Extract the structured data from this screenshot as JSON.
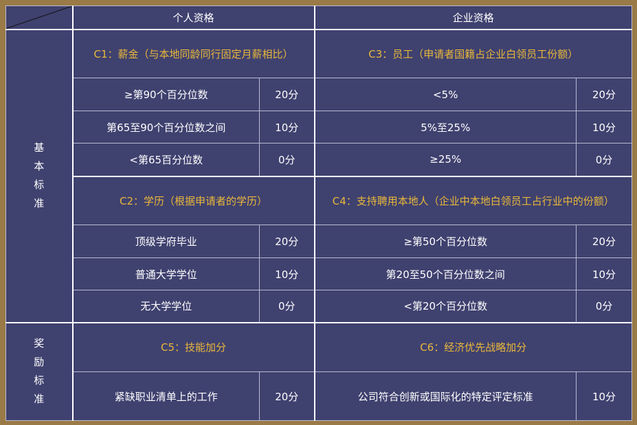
{
  "header": {
    "personal": "个人资格",
    "enterprise": "企业资格"
  },
  "sections": [
    {
      "label": "基\n本\n标\n准",
      "label_chars": [
        "基",
        "本",
        "标",
        "准"
      ]
    },
    {
      "label": "奖\n励\n标\n准",
      "label_chars": [
        "奖",
        "励",
        "标",
        "准"
      ]
    }
  ],
  "blocks": [
    {
      "left_title": "C1：薪金（与本地同龄同行固定月薪相比）",
      "right_title": "C3：员工（申请者国籍占企业白领员工份额）",
      "rows": [
        {
          "left": "≥第90个百分位数",
          "left_score": "20分",
          "right": "<5%",
          "right_score": "20分"
        },
        {
          "left": "第65至90个百分位数之间",
          "left_score": "10分",
          "right": "5%至25%",
          "right_score": "10分"
        },
        {
          "left": "<第65百分位数",
          "left_score": "0分",
          "right": "≥25%",
          "right_score": "0分"
        }
      ]
    },
    {
      "left_title": "C2：学历（根据申请者的学历）",
      "right_title": "C4：支持聘用本地人（企业中本地白领员工占行业中的份额）",
      "rows": [
        {
          "left": "顶级学府毕业",
          "left_score": "20分",
          "right": "≥第50个百分位数",
          "right_score": "20分"
        },
        {
          "left": "普通大学学位",
          "left_score": "10分",
          "right": "第20至50个百分位数之间",
          "right_score": "10分"
        },
        {
          "left": "无大学学位",
          "left_score": "0分",
          "right": "<第20个百分位数",
          "right_score": "0分"
        }
      ]
    },
    {
      "left_title": "C5：技能加分",
      "right_title": "C6：经济优先战略加分",
      "rows": [
        {
          "left": "紧缺职业清单上的工作",
          "left_score": "20分",
          "right": "公司符合创新或国际化的特定评定标准",
          "right_score": "10分"
        }
      ]
    }
  ],
  "colors": {
    "frame": "#9a7a46",
    "table_bg": "#3f416f",
    "title_gold": "#e9b83a",
    "text": "#ffffff"
  }
}
